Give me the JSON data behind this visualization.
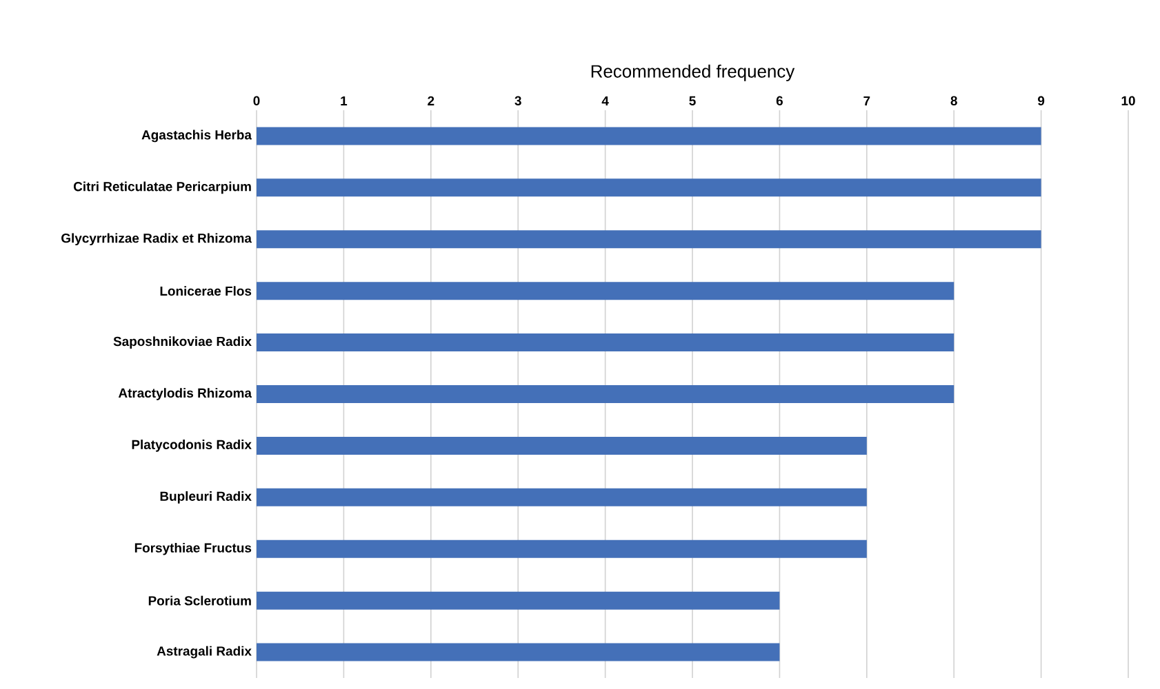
{
  "chart_data": {
    "type": "bar",
    "orientation": "horizontal",
    "xlabel": "Recommended frequency",
    "categories": [
      "Agastachis Herba",
      "Citri Reticulatae Pericarpium",
      "Glycyrrhizae Radix et Rhizoma",
      "Lonicerae Flos",
      "Saposhnikoviae Radix",
      "Atractylodis Rhizoma",
      "Platycodonis Radix",
      "Bupleuri Radix",
      "Forsythiae Fructus",
      "Poria Sclerotium",
      "Astragali Radix"
    ],
    "values": [
      9,
      9,
      9,
      8,
      8,
      8,
      7,
      7,
      7,
      6,
      6
    ],
    "color": "#4470b8",
    "xlim": [
      0,
      10
    ],
    "xticks": [
      0,
      1,
      2,
      3,
      4,
      5,
      6,
      7,
      8,
      9,
      10
    ],
    "grid": "x"
  }
}
